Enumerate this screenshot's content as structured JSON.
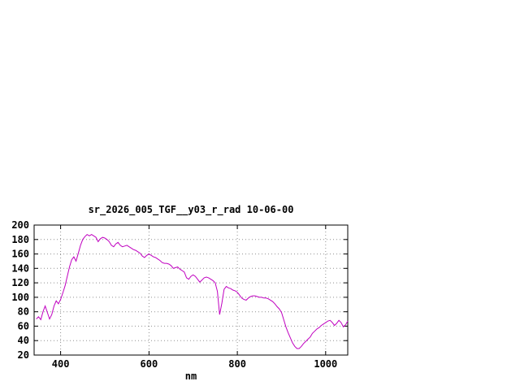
{
  "chart_data": {
    "type": "line",
    "title": "sr_2026_005_TGF__y03_r_rad 10-06-00",
    "xlabel": "nm",
    "ylabel": "",
    "xlim": [
      340,
      1050
    ],
    "ylim": [
      20,
      200
    ],
    "xticks": [
      400,
      600,
      800,
      1000
    ],
    "yticks": [
      20,
      40,
      60,
      80,
      100,
      120,
      140,
      160,
      180,
      200
    ],
    "grid": true,
    "legend": "none",
    "line_color": "#C000C0",
    "series": [
      {
        "name": "sr_2026_005_TGF__y03_r_rad",
        "x": [
          345,
          350,
          355,
          360,
          365,
          370,
          375,
          380,
          385,
          390,
          395,
          400,
          405,
          410,
          415,
          420,
          425,
          430,
          435,
          440,
          445,
          450,
          455,
          460,
          465,
          470,
          475,
          480,
          485,
          490,
          495,
          500,
          505,
          510,
          515,
          520,
          525,
          530,
          535,
          540,
          545,
          550,
          555,
          560,
          565,
          570,
          575,
          580,
          585,
          590,
          595,
          600,
          605,
          610,
          615,
          620,
          625,
          630,
          635,
          640,
          645,
          650,
          655,
          660,
          665,
          670,
          675,
          680,
          685,
          690,
          695,
          700,
          705,
          710,
          715,
          720,
          725,
          730,
          735,
          740,
          745,
          750,
          755,
          760,
          765,
          770,
          775,
          780,
          785,
          790,
          795,
          800,
          805,
          810,
          815,
          820,
          825,
          830,
          835,
          840,
          845,
          850,
          855,
          860,
          865,
          870,
          875,
          880,
          885,
          890,
          895,
          900,
          905,
          910,
          915,
          920,
          925,
          930,
          935,
          940,
          945,
          950,
          955,
          960,
          965,
          970,
          975,
          980,
          985,
          990,
          995,
          1000,
          1005,
          1010,
          1015,
          1020,
          1025,
          1030,
          1035,
          1040,
          1045,
          1050
        ],
        "y": [
          70,
          73,
          69,
          80,
          88,
          79,
          70,
          76,
          88,
          95,
          91,
          97,
          106,
          116,
          129,
          142,
          152,
          156,
          150,
          161,
          172,
          180,
          184,
          187,
          185,
          187,
          185,
          183,
          177,
          181,
          183,
          182,
          180,
          177,
          172,
          170,
          174,
          176,
          172,
          170,
          171,
          172,
          170,
          168,
          166,
          165,
          163,
          161,
          157,
          155,
          158,
          160,
          158,
          156,
          155,
          153,
          151,
          148,
          147,
          147,
          146,
          144,
          140,
          141,
          142,
          139,
          137,
          135,
          127,
          125,
          129,
          131,
          129,
          125,
          121,
          124,
          127,
          128,
          127,
          125,
          123,
          120,
          108,
          76,
          92,
          111,
          115,
          113,
          112,
          110,
          109,
          107,
          103,
          99,
          97,
          96,
          99,
          101,
          102,
          102,
          101,
          100,
          100,
          99,
          99,
          98,
          96,
          94,
          91,
          87,
          84,
          79,
          69,
          59,
          51,
          44,
          37,
          32,
          29,
          29,
          32,
          36,
          39,
          42,
          45,
          50,
          53,
          56,
          58,
          61,
          63,
          65,
          67,
          68,
          65,
          61,
          64,
          68,
          65,
          59,
          62,
          67
        ]
      }
    ]
  }
}
